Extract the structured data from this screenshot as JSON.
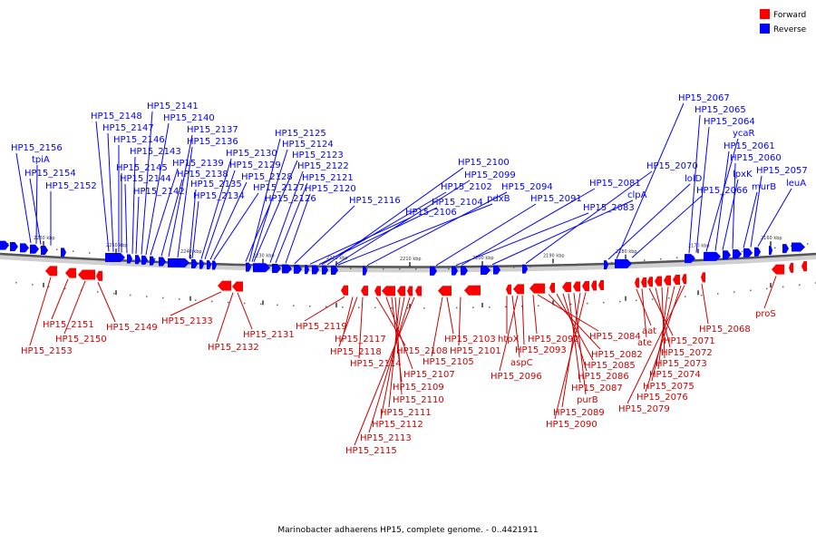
{
  "legend": {
    "items": [
      {
        "label": "Forward",
        "color": "#ff0000"
      },
      {
        "label": "Reverse",
        "color": "#0000ff"
      }
    ]
  },
  "caption": "Marinobacter adhaerens HP15, complete genome. - 0..4421911",
  "ticks": [
    "2260 kbp",
    "2250 kbp",
    "2240 kbp",
    "2230 kbp",
    "2220 kbp",
    "2210 kbp",
    "2200 kbp",
    "2190 kbp",
    "2180 kbp",
    "2170 kbp",
    "2160 kbp"
  ],
  "reverse_labels": [
    "HP15_2156",
    "tpiA",
    "HP15_2154",
    "HP15_2152",
    "HP15_2148",
    "HP15_2147",
    "HP15_2146",
    "HP15_2145",
    "HP15_2144",
    "HP15_2143",
    "HP15_2142",
    "HP15_2141",
    "HP15_2140",
    "HP15_2139",
    "HP15_2138",
    "HP15_2137",
    "HP15_2136",
    "HP15_2135",
    "HP15_2134",
    "HP15_2130",
    "HP15_2129",
    "HP15_2128",
    "HP15_2127",
    "HP15_2126",
    "HP15_2125",
    "HP15_2124",
    "HP15_2123",
    "HP15_2122",
    "HP15_2121",
    "HP15_2120",
    "HP15_2116",
    "HP15_2106",
    "HP15_2104",
    "HP15_2102",
    "HP15_2100",
    "HP15_2099",
    "pdxB",
    "HP15_2094",
    "HP15_2091",
    "HP15_2083",
    "HP15_2081",
    "clpA",
    "HP15_2070",
    "lolD",
    "HP15_2067",
    "HP15_2066",
    "HP15_2065",
    "HP15_2064",
    "ycaR",
    "HP15_2061",
    "lpxK",
    "HP15_2060",
    "murB",
    "HP15_2057",
    "leuA"
  ],
  "forward_labels": [
    "HP15_2151",
    "HP15_2153",
    "HP15_2150",
    "HP15_2149",
    "HP15_2133",
    "HP15_2132",
    "HP15_2131",
    "HP15_2119",
    "HP15_2117",
    "HP15_2118",
    "HP15_2114",
    "HP15_2108",
    "HP15_2107",
    "HP15_2109",
    "HP15_2110",
    "HP15_2111",
    "HP15_2112",
    "HP15_2113",
    "HP15_2115",
    "HP15_2105",
    "HP15_2103",
    "HP15_2101",
    "htpX",
    "aspC",
    "HP15_2096",
    "HP15_2093",
    "HP15_2092",
    "HP15_2084",
    "HP15_2082",
    "HP15_2085",
    "HP15_2086",
    "HP15_2087",
    "purB",
    "HP15_2089",
    "HP15_2090",
    "aat",
    "ate",
    "HP15_2071",
    "HP15_2072",
    "HP15_2073",
    "HP15_2074",
    "HP15_2075",
    "HP15_2076",
    "HP15_2079",
    "HP15_2068",
    "proS"
  ]
}
